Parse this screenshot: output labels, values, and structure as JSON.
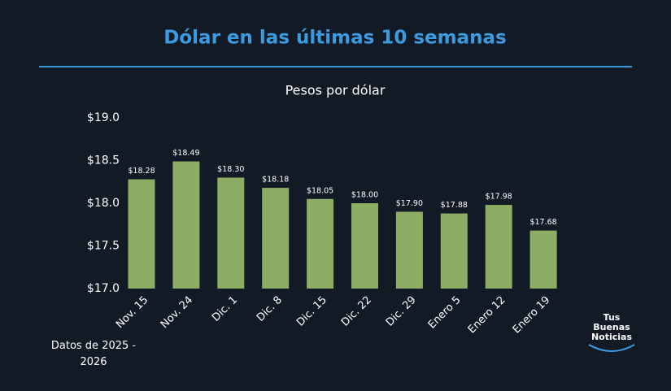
{
  "chart_data": {
    "type": "bar",
    "title": "Dólar en las últimas 10 semanas",
    "subtitle": "Pesos por dólar",
    "categories": [
      "Nov. 15",
      "Nov. 24",
      "Dic. 1",
      "Dic. 8",
      "Dic. 15",
      "Dic. 22",
      "Dic. 29",
      "Enero 5",
      "Enero 12",
      "Enero 19"
    ],
    "values": [
      18.28,
      18.49,
      18.3,
      18.18,
      18.05,
      18.0,
      17.9,
      17.88,
      17.98,
      17.68
    ],
    "value_labels": [
      "$18.28",
      "$18.49",
      "$18.30",
      "$18.18",
      "$18.05",
      "$18.00",
      "$17.90",
      "$17.88",
      "$17.98",
      "$17.68"
    ],
    "color": "#8cad63",
    "ylim": [
      17.0,
      19.0
    ],
    "yticks": [
      {
        "value": 17.0,
        "label": "$17.0"
      },
      {
        "value": 17.5,
        "label": "$17.5"
      },
      {
        "value": 18.0,
        "label": "$18.0"
      },
      {
        "value": 18.5,
        "label": "$18.5"
      },
      {
        "value": 19.0,
        "label": "$19.0"
      }
    ],
    "grid": false,
    "note": "Datos de 2025 - 2026",
    "logo": [
      "Tus",
      "Buenas",
      "Noticias"
    ]
  }
}
